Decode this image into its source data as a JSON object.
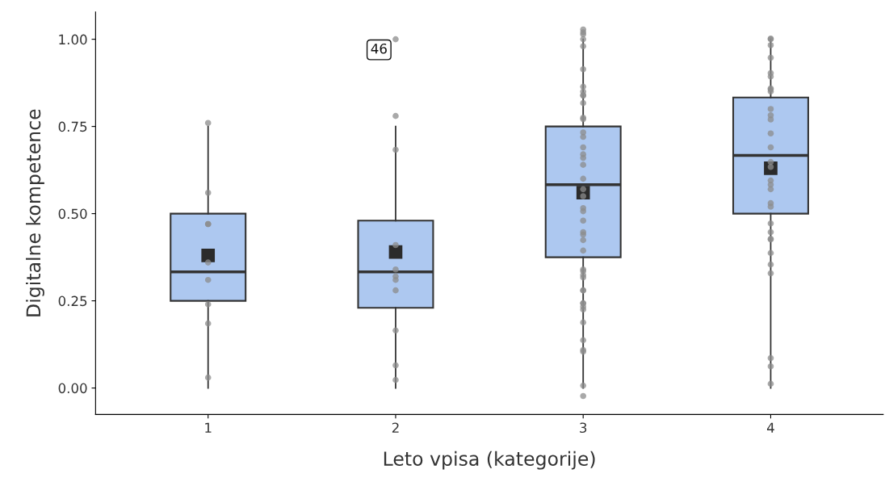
{
  "chart_data": {
    "type": "box",
    "xlabel": "Leto vpisa (kategorije)",
    "ylabel": "Digitalne kompetence",
    "categories": [
      "1",
      "2",
      "3",
      "4"
    ],
    "ylim": [
      -0.076,
      1.078
    ],
    "yticks": [
      {
        "value": 0,
        "label": "0.00"
      },
      {
        "value": 0.25,
        "label": "0.25"
      },
      {
        "value": 0.5,
        "label": "0.50"
      },
      {
        "value": 0.75,
        "label": "0.75"
      },
      {
        "value": 1,
        "label": "1.00"
      }
    ],
    "grid": false,
    "legend": false,
    "series": [
      {
        "color": "#adc8f0",
        "boxes": [
          {
            "low": 0,
            "q1": 0.25,
            "median": 0.333,
            "q3": 0.5,
            "high": 0.75,
            "mean": 0.38
          },
          {
            "low": 0,
            "q1": 0.23,
            "median": 0.333,
            "q3": 0.48,
            "high": 0.75,
            "mean": 0.39
          },
          {
            "low": 0,
            "q1": 0.375,
            "median": 0.583,
            "q3": 0.75,
            "high": 1.0,
            "mean": 0.56
          },
          {
            "low": 0,
            "q1": 0.5,
            "median": 0.667,
            "q3": 0.833,
            "high": 1.0,
            "mean": 0.63
          }
        ]
      },
      {
        "type": "scatter",
        "color": "#8c8c8c",
        "marker": "circle",
        "x": [
          "1",
          "1",
          "1",
          "1",
          "1",
          "1",
          "1",
          "1",
          "1",
          "2",
          "2",
          "2",
          "2",
          "2",
          "2",
          "2",
          "2",
          "2",
          "2",
          "2",
          "3",
          "3",
          "3",
          "3",
          "3",
          "3",
          "3",
          "3",
          "3",
          "3",
          "3",
          "3",
          "3",
          "3",
          "3",
          "3",
          "3",
          "3",
          "3",
          "3",
          "3",
          "3",
          "3",
          "3",
          "3",
          "3",
          "3",
          "3",
          "3",
          "3",
          "3",
          "3",
          "3",
          "3",
          "3",
          "3",
          "3",
          "3",
          "3",
          "3",
          "3",
          "3",
          "3",
          "3",
          "3",
          "4",
          "4",
          "4",
          "4",
          "4",
          "4",
          "4",
          "4",
          "4",
          "4",
          "4",
          "4",
          "4",
          "4",
          "4",
          "4",
          "4",
          "4",
          "4",
          "4",
          "4",
          "4",
          "4",
          "4",
          "4",
          "4",
          "4",
          "4",
          "4",
          "4",
          "4"
        ],
        "values": [
          0.76,
          0.56,
          0.47,
          0.47,
          0.36,
          0.31,
          0.24,
          0.185,
          0.03,
          1.0,
          0.78,
          0.683,
          0.41,
          0.34,
          0.32,
          0.31,
          0.28,
          0.165,
          0.065,
          0.023,
          1.028,
          1.02,
          1.014,
          1.0,
          0.98,
          0.914,
          0.864,
          0.85,
          0.84,
          0.838,
          0.817,
          0.775,
          0.771,
          0.733,
          0.72,
          0.69,
          0.67,
          0.66,
          0.64,
          0.6,
          0.57,
          0.55,
          0.516,
          0.507,
          0.48,
          0.447,
          0.44,
          0.424,
          0.394,
          0.34,
          0.335,
          0.324,
          0.317,
          0.28,
          0.28,
          0.243,
          0.243,
          0.233,
          0.225,
          0.188,
          0.137,
          0.109,
          0.104,
          0.007,
          -0.023,
          1.002,
          1.0,
          0.983,
          0.947,
          0.903,
          0.893,
          0.859,
          0.856,
          0.85,
          0.8,
          0.782,
          0.77,
          0.73,
          0.69,
          0.648,
          0.634,
          0.595,
          0.583,
          0.57,
          0.53,
          0.52,
          0.472,
          0.447,
          0.428,
          0.426,
          0.387,
          0.354,
          0.329,
          0.086,
          0.062,
          0.012
        ]
      }
    ],
    "annotations": [
      {
        "text": "46",
        "x": "2",
        "y": 1.0
      }
    ]
  }
}
